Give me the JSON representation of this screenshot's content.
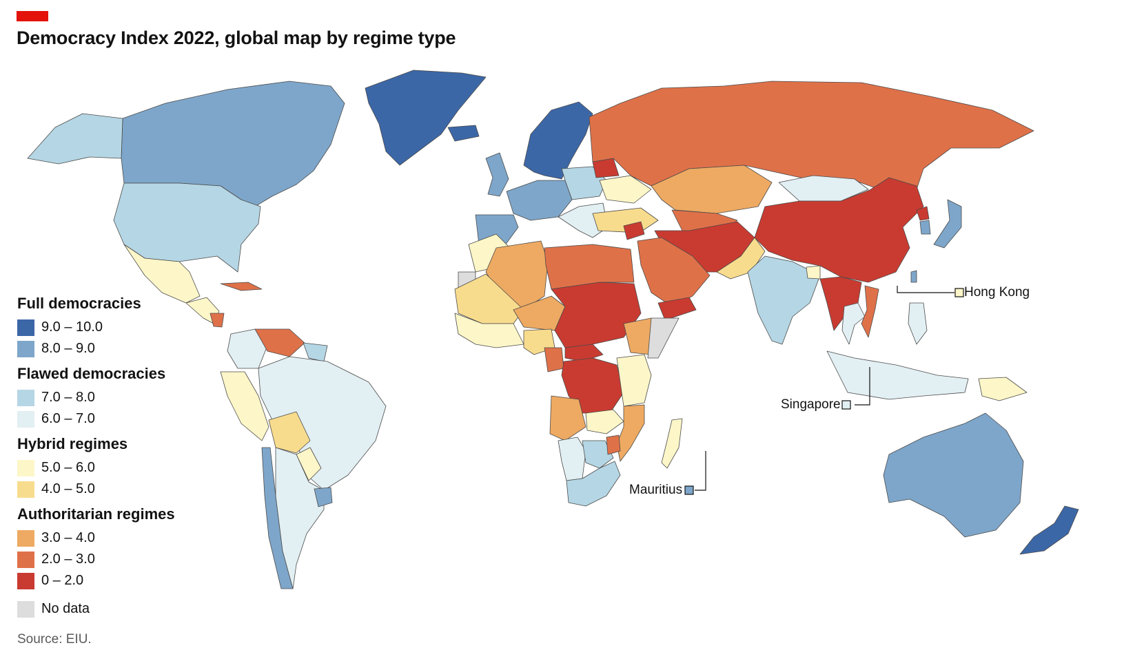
{
  "header": {
    "accent_color": "#e3120b",
    "title": "Democracy Index 2022, global map by regime type"
  },
  "legend": {
    "groups": [
      {
        "title": "Full democracies",
        "items": [
          {
            "label": "9.0 – 10.0",
            "color": "#3c67a7"
          },
          {
            "label": "8.0 – 9.0",
            "color": "#7ea6ca"
          }
        ]
      },
      {
        "title": "Flawed democracies",
        "items": [
          {
            "label": "7.0 – 8.0",
            "color": "#b5d6e4"
          },
          {
            "label": "6.0 – 7.0",
            "color": "#e2eff3"
          }
        ]
      },
      {
        "title": "Hybrid regimes",
        "items": [
          {
            "label": "5.0 – 6.0",
            "color": "#fdf6c8"
          },
          {
            "label": "4.0 – 5.0",
            "color": "#f8dc8e"
          }
        ]
      },
      {
        "title": "Authoritarian regimes",
        "items": [
          {
            "label": "3.0 – 4.0",
            "color": "#eeaa62"
          },
          {
            "label": "2.0 – 3.0",
            "color": "#df7149"
          },
          {
            "label": "0 – 2.0",
            "color": "#c93b31"
          }
        ]
      }
    ],
    "no_data": {
      "label": "No data",
      "color": "#dddddd"
    }
  },
  "callouts": [
    {
      "label": "Hong Kong",
      "category": "5.0 – 6.0"
    },
    {
      "label": "Singapore",
      "category": "6.0 – 7.0"
    },
    {
      "label": "Mauritius",
      "category": "8.0 – 9.0"
    }
  ],
  "map_regions": [
    {
      "region": "Greenland",
      "category": "9.0 – 10.0"
    },
    {
      "region": "Canada",
      "category": "8.0 – 9.0"
    },
    {
      "region": "Alaska",
      "category": "7.0 – 8.0"
    },
    {
      "region": "United States",
      "category": "7.0 – 8.0"
    },
    {
      "region": "Mexico",
      "category": "5.0 – 6.0"
    },
    {
      "region": "Central America",
      "category": "5.0 – 6.0"
    },
    {
      "region": "Nicaragua",
      "category": "2.0 – 3.0"
    },
    {
      "region": "Cuba",
      "category": "2.0 – 3.0"
    },
    {
      "region": "Colombia",
      "category": "6.0 – 7.0"
    },
    {
      "region": "Venezuela",
      "category": "2.0 – 3.0"
    },
    {
      "region": "Guianas",
      "category": "7.0 – 8.0"
    },
    {
      "region": "Ecuador and Peru",
      "category": "5.0 – 6.0"
    },
    {
      "region": "Brazil",
      "category": "6.0 – 7.0"
    },
    {
      "region": "Bolivia",
      "category": "4.0 – 5.0"
    },
    {
      "region": "Paraguay",
      "category": "5.0 – 6.0"
    },
    {
      "region": "Chile",
      "category": "8.0 – 9.0"
    },
    {
      "region": "Argentina",
      "category": "6.0 – 7.0"
    },
    {
      "region": "Uruguay",
      "category": "8.0 – 9.0"
    },
    {
      "region": "Iceland",
      "category": "9.0 – 10.0"
    },
    {
      "region": "Scandinavia",
      "category": "9.0 – 10.0"
    },
    {
      "region": "United Kingdom",
      "category": "8.0 – 9.0"
    },
    {
      "region": "Western Europe",
      "category": "8.0 – 9.0"
    },
    {
      "region": "Iberia",
      "category": "8.0 – 9.0"
    },
    {
      "region": "Central Europe",
      "category": "7.0 – 8.0"
    },
    {
      "region": "Balkans",
      "category": "6.0 – 7.0"
    },
    {
      "region": "Ukraine",
      "category": "5.0 – 6.0"
    },
    {
      "region": "Belarus",
      "category": "0 – 2.0"
    },
    {
      "region": "Russia",
      "category": "2.0 – 3.0"
    },
    {
      "region": "Turkey",
      "category": "4.0 – 5.0"
    },
    {
      "region": "Kazakhstan",
      "category": "3.0 – 4.0"
    },
    {
      "region": "Central Asia",
      "category": "2.0 – 3.0"
    },
    {
      "region": "Afghanistan and Iran",
      "category": "0 – 2.0"
    },
    {
      "region": "Pakistan",
      "category": "4.0 – 5.0"
    },
    {
      "region": "India",
      "category": "7.0 – 8.0"
    },
    {
      "region": "Bangladesh",
      "category": "5.0 – 6.0"
    },
    {
      "region": "Mongolia",
      "category": "6.0 – 7.0"
    },
    {
      "region": "China",
      "category": "0 – 2.0"
    },
    {
      "region": "North Korea",
      "category": "0 – 2.0"
    },
    {
      "region": "South Korea",
      "category": "8.0 – 9.0"
    },
    {
      "region": "Japan",
      "category": "8.0 – 9.0"
    },
    {
      "region": "Taiwan",
      "category": "8.0 – 9.0"
    },
    {
      "region": "Myanmar and Laos",
      "category": "0 – 2.0"
    },
    {
      "region": "Thailand",
      "category": "6.0 – 7.0"
    },
    {
      "region": "Vietnam",
      "category": "2.0 – 3.0"
    },
    {
      "region": "Philippines",
      "category": "6.0 – 7.0"
    },
    {
      "region": "Indonesia",
      "category": "6.0 – 7.0"
    },
    {
      "region": "Papua New Guinea",
      "category": "5.0 – 6.0"
    },
    {
      "region": "Australia",
      "category": "8.0 – 9.0"
    },
    {
      "region": "New Zealand",
      "category": "9.0 – 10.0"
    },
    {
      "region": "Saudi Arabia",
      "category": "2.0 – 3.0"
    },
    {
      "region": "Yemen",
      "category": "0 – 2.0"
    },
    {
      "region": "Syria",
      "category": "0 – 2.0"
    },
    {
      "region": "Morocco",
      "category": "5.0 – 6.0"
    },
    {
      "region": "Algeria",
      "category": "3.0 – 4.0"
    },
    {
      "region": "Libya and Egypt",
      "category": "2.0 – 3.0"
    },
    {
      "region": "Western Sahara",
      "category": "No data"
    },
    {
      "region": "Mauritania and Mali",
      "category": "4.0 – 5.0"
    },
    {
      "region": "Niger",
      "category": "3.0 – 4.0"
    },
    {
      "region": "Chad and Sudan",
      "category": "0 – 2.0"
    },
    {
      "region": "Ethiopia",
      "category": "3.0 – 4.0"
    },
    {
      "region": "Somalia",
      "category": "No data"
    },
    {
      "region": "West African coast",
      "category": "5.0 – 6.0"
    },
    {
      "region": "Nigeria",
      "category": "4.0 – 5.0"
    },
    {
      "region": "Cameroon",
      "category": "2.0 – 3.0"
    },
    {
      "region": "Central African Republic",
      "category": "0 – 2.0"
    },
    {
      "region": "DR Congo",
      "category": "0 – 2.0"
    },
    {
      "region": "Kenya and Tanzania",
      "category": "5.0 – 6.0"
    },
    {
      "region": "Angola",
      "category": "3.0 – 4.0"
    },
    {
      "region": "Zambia",
      "category": "5.0 – 6.0"
    },
    {
      "region": "Mozambique",
      "category": "3.0 – 4.0"
    },
    {
      "region": "Namibia",
      "category": "6.0 – 7.0"
    },
    {
      "region": "Botswana",
      "category": "7.0 – 8.0"
    },
    {
      "region": "Zimbabwe",
      "category": "2.0 – 3.0"
    },
    {
      "region": "South Africa",
      "category": "7.0 – 8.0"
    },
    {
      "region": "Madagascar",
      "category": "5.0 – 6.0"
    }
  ],
  "source": "Source: EIU."
}
